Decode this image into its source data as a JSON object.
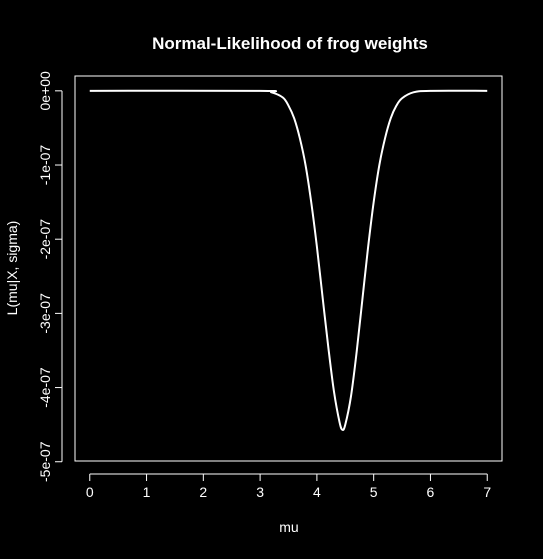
{
  "chart_data": {
    "type": "line",
    "title": "Normal-Likelihood of frog weights",
    "xlabel": "mu",
    "ylabel": "L(mu|X, sigma)",
    "xlim": [
      -0.26,
      7.26
    ],
    "ylim": [
      -4.99e-07,
      2e-08
    ],
    "x_ticks": [
      0,
      1,
      2,
      3,
      4,
      5,
      6,
      7
    ],
    "x_tick_labels": [
      "0",
      "1",
      "2",
      "3",
      "4",
      "5",
      "6",
      "7"
    ],
    "y_ticks": [
      0,
      -1e-07,
      -2e-07,
      -3e-07,
      -4e-07,
      -5e-07
    ],
    "y_tick_labels": [
      "0e+00",
      "-1e-07",
      "-2e-07",
      "-3e-07",
      "-4e-07",
      "-5e-07"
    ],
    "grid": false,
    "legend": "none",
    "colors": {
      "background": "#000000",
      "foreground": "#ffffff",
      "line": "#ffffff"
    },
    "series": [
      {
        "x": [
          0,
          3.0,
          3.2,
          3.4,
          3.5,
          3.6,
          3.7,
          3.8,
          3.9,
          4.0,
          4.1,
          4.2,
          4.3,
          4.4,
          4.45,
          4.5,
          4.6,
          4.7,
          4.8,
          4.9,
          5.0,
          5.1,
          5.2,
          5.3,
          5.4,
          5.5,
          5.7,
          6.0,
          7
        ],
        "y": [
          0,
          0,
          -2e-09,
          -9e-09,
          -2e-08,
          -3.7e-08,
          -6.4e-08,
          -1e-07,
          -1.5e-07,
          -2.1e-07,
          -2.78e-07,
          -3.45e-07,
          -4.05e-07,
          -4.47e-07,
          -4.57e-07,
          -4.5e-07,
          -4.12e-07,
          -3.52e-07,
          -2.82e-07,
          -2.12e-07,
          -1.5e-07,
          -1e-07,
          -6.4e-08,
          -3.7e-08,
          -2e-08,
          -1e-08,
          -2e-09,
          0,
          0
        ]
      }
    ]
  }
}
